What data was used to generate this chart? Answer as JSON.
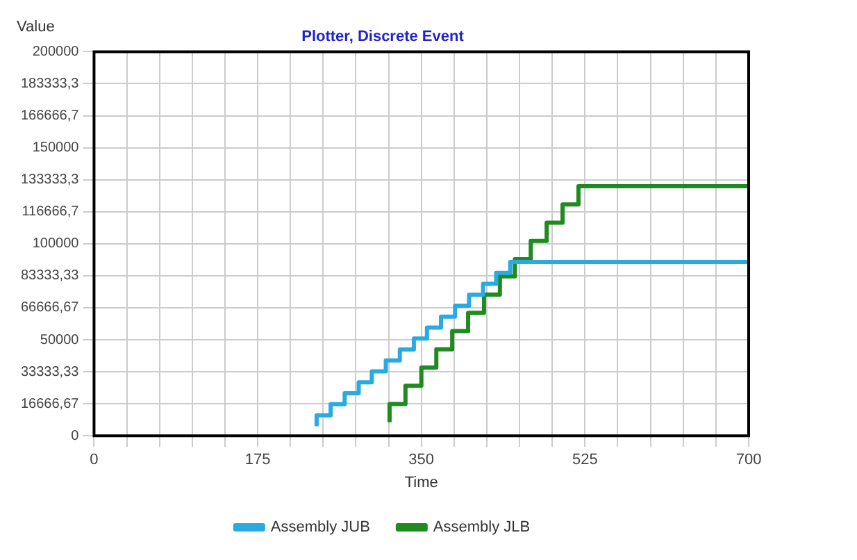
{
  "chart_data": {
    "type": "step",
    "title": "Plotter, Discrete Event",
    "xlabel": "Time",
    "ylabel": "Value",
    "series": [
      {
        "name": "Assembly JUB",
        "color": "#29abe2",
        "x": [
          238,
          253,
          268,
          283,
          297,
          312,
          327,
          342,
          356,
          371,
          386,
          401,
          416,
          430,
          445,
          460,
          700
        ],
        "values": [
          5000,
          10700,
          16400,
          22100,
          27800,
          33500,
          39200,
          44900,
          50600,
          56300,
          62000,
          67700,
          73400,
          79100,
          84800,
          90500,
          90500
        ]
      },
      {
        "name": "Assembly JLB",
        "color": "#1f8a1f",
        "x": [
          316,
          333,
          350,
          366,
          383,
          400,
          417,
          434,
          450,
          467,
          484,
          501,
          518,
          535,
          700
        ],
        "values": [
          7000,
          16500,
          26000,
          35500,
          45000,
          54500,
          64000,
          73500,
          83000,
          92000,
          101500,
          111000,
          120500,
          130000,
          130000
        ]
      }
    ],
    "xlim": [
      0,
      700
    ],
    "xticks": [
      0,
      {
        "value": 35,
        "label": null
      },
      {
        "value": 70,
        "label": null
      },
      {
        "value": 105,
        "label": null
      },
      {
        "value": 140,
        "label": null
      },
      175,
      {
        "value": 210,
        "label": null
      },
      {
        "value": 245,
        "label": null
      },
      {
        "value": 280,
        "label": null
      },
      {
        "value": 315,
        "label": null
      },
      350,
      {
        "value": 385,
        "label": null
      },
      {
        "value": 420,
        "label": null
      },
      {
        "value": 455,
        "label": null
      },
      {
        "value": 490,
        "label": null
      },
      525,
      {
        "value": 560,
        "label": null
      },
      {
        "value": 595,
        "label": null
      },
      {
        "value": 630,
        "label": null
      },
      {
        "value": 665,
        "label": null
      },
      700
    ],
    "ylim": [
      0,
      200000
    ],
    "yticks": [
      0,
      {
        "value": 16666.67,
        "label": "16666,67"
      },
      {
        "value": 33333.33,
        "label": "33333,33"
      },
      50000,
      {
        "value": 66666.67,
        "label": "66666,67"
      },
      {
        "value": 83333.33,
        "label": "83333,33"
      },
      100000,
      {
        "value": 116666.7,
        "label": "116666,7"
      },
      {
        "value": 133333.3,
        "label": "133333,3"
      },
      150000,
      {
        "value": 166666.7,
        "label": "166666,7"
      },
      {
        "value": 183333.3,
        "label": "183333,3"
      },
      200000
    ],
    "grid": true,
    "legend": "bottom",
    "marker": "none",
    "line_style": "solid"
  }
}
